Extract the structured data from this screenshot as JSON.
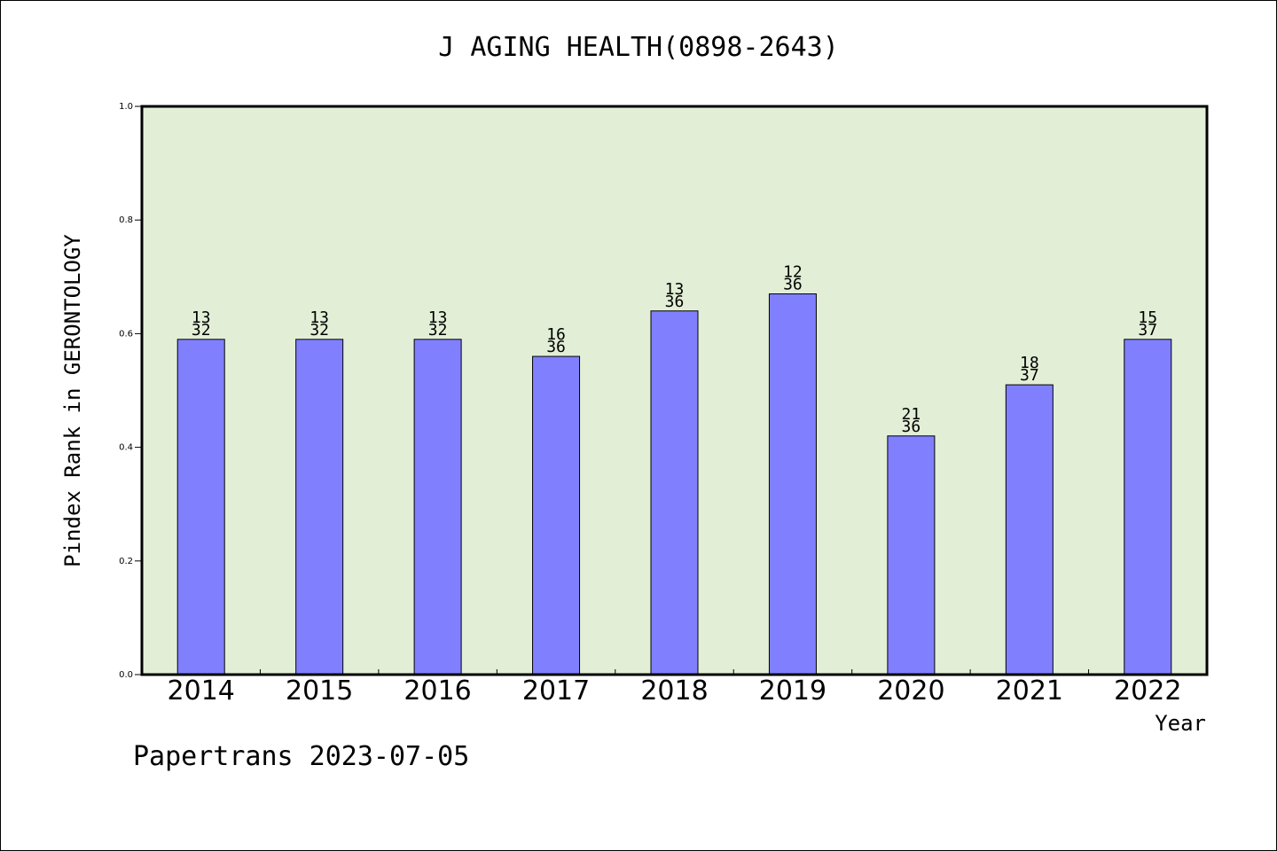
{
  "chart_data": {
    "type": "bar",
    "title": "J AGING HEALTH(0898-2643)",
    "xlabel": "Year",
    "ylabel": "Pindex Rank in GERONTOLOGY",
    "ylim": [
      0,
      1.0
    ],
    "yticks": [
      "0.0",
      "0.2",
      "0.4",
      "0.6",
      "0.8",
      "1.0"
    ],
    "categories": [
      "2014",
      "2015",
      "2016",
      "2017",
      "2018",
      "2019",
      "2020",
      "2021",
      "2022"
    ],
    "values": [
      0.59,
      0.59,
      0.59,
      0.56,
      0.64,
      0.67,
      0.42,
      0.51,
      0.59
    ],
    "rank_labels": [
      "13",
      "13",
      "13",
      "16",
      "13",
      "12",
      "21",
      "18",
      "15"
    ],
    "total_labels": [
      "32",
      "32",
      "32",
      "36",
      "36",
      "36",
      "36",
      "37",
      "37"
    ],
    "plot_background": "#e2efd6",
    "bar_color": "#8080ff",
    "grid": false,
    "legend": "none"
  },
  "footer": "Papertrans 2023-07-05"
}
